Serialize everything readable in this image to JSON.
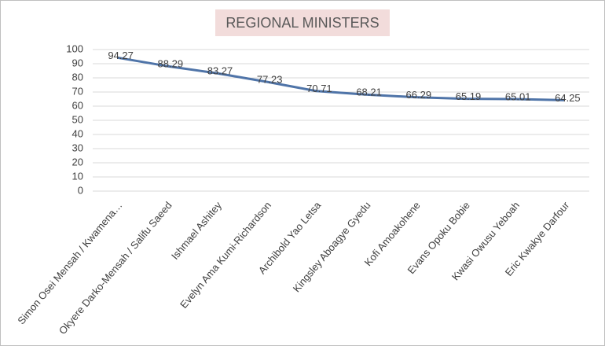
{
  "chart_data": {
    "type": "line",
    "title": "REGIONAL MINISTERS",
    "categories": [
      "Simon Osei Mensah / Kwamena…",
      "Okyere Darko-Mensah / Salifu Saeed",
      "Ishmael Ashitey",
      "Evelyn Ama Kumi-Richardson",
      "Archibold Yao Letsa",
      "Kingsley Aboagye Gyedu",
      "Kofi Amoakohene",
      "Evans Opoku Bobie",
      "Kwasi Owusu Yeboah",
      "Eric  Kwakye  Darfour"
    ],
    "values": [
      94.27,
      88.29,
      83.27,
      77.23,
      70.71,
      68.21,
      66.29,
      65.19,
      65.01,
      64.25
    ],
    "color": "#4f74a8",
    "ylim": [
      0,
      100
    ],
    "yticks": [
      0,
      10,
      20,
      30,
      40,
      50,
      60,
      70,
      80,
      90,
      100
    ],
    "grid": true
  }
}
